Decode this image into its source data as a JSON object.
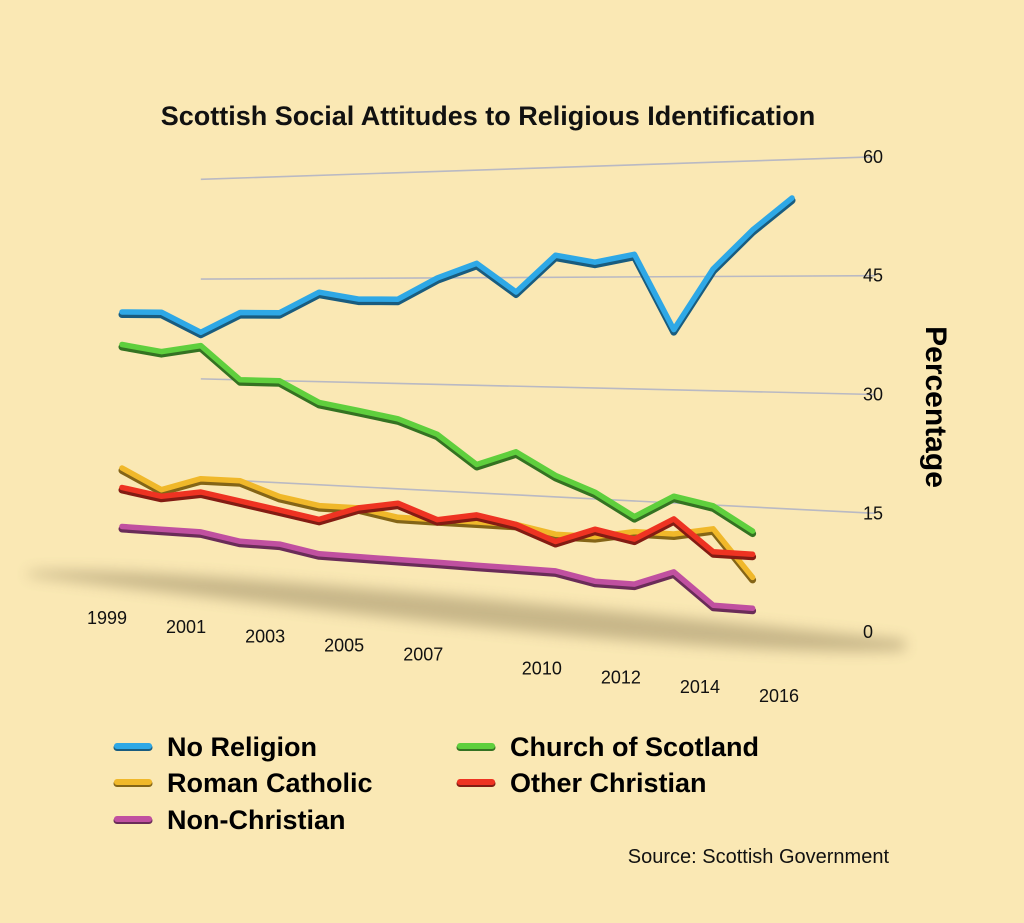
{
  "chart_data": {
    "type": "line",
    "title": "Scottish Social Attitudes to Religious Identification",
    "ylabel": "Percentage",
    "xlabel": "",
    "ylim": [
      0,
      60
    ],
    "yticks": [
      0,
      15,
      30,
      45,
      60
    ],
    "x": [
      1999,
      2000,
      2001,
      2002,
      2003,
      2004,
      2005,
      2006,
      2007,
      2008,
      2009,
      2010,
      2011,
      2012,
      2013,
      2014,
      2015,
      2016
    ],
    "xtick_labels": [
      "1999",
      "2001",
      "2003",
      "2005",
      "2007",
      "2010",
      "2012",
      "2014",
      "2016"
    ],
    "series": [
      {
        "name": "No Religion",
        "color": "#2ea8e6",
        "values": [
          40,
          40,
          37,
          40,
          40,
          43,
          42,
          42,
          45,
          47,
          43,
          48,
          47,
          48,
          38,
          46,
          51,
          55
        ]
      },
      {
        "name": "Church of Scotland",
        "color": "#5fcf3d",
        "values": [
          35,
          34,
          35,
          30,
          30,
          27,
          26,
          25,
          23,
          19,
          21,
          18,
          16,
          13,
          16,
          15,
          12,
          null
        ]
      },
      {
        "name": "Roman Catholic",
        "color": "#f0b82a",
        "values": [
          16,
          13,
          15,
          15,
          13,
          12,
          12,
          11,
          11,
          11,
          11,
          10,
          10,
          11,
          11,
          12,
          6,
          null
        ]
      },
      {
        "name": "Other Christian",
        "color": "#ee3322",
        "values": [
          13,
          12,
          13,
          12,
          11,
          10,
          12,
          13,
          11,
          12,
          11,
          9,
          11,
          10,
          13,
          9,
          9,
          null
        ]
      },
      {
        "name": "Non-Christian",
        "color": "#c050a0",
        "values": [
          7,
          7,
          7,
          6,
          6,
          5,
          5,
          5,
          5,
          5,
          5,
          5,
          4,
          4,
          6,
          2,
          2,
          null
        ]
      }
    ],
    "grid": true,
    "legend_position": "bottom",
    "source": "Source: Scottish Government"
  }
}
